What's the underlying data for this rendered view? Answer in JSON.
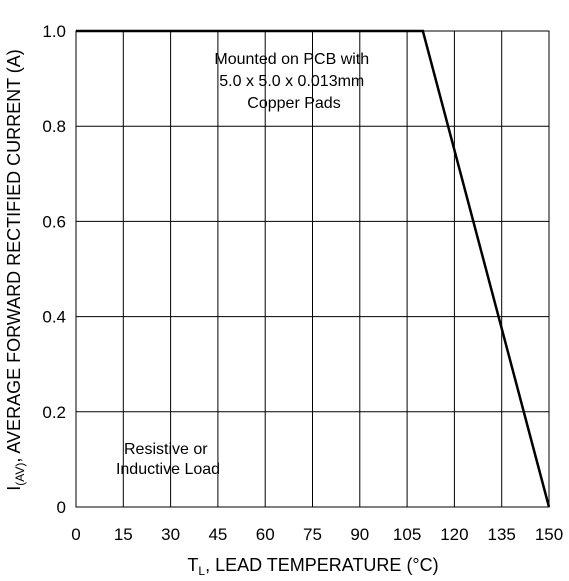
{
  "chart_data": {
    "type": "line",
    "xlabel": {
      "main": "T",
      "sub": "L",
      "rest": ", LEAD TEMPERATURE (°C)"
    },
    "ylabel": {
      "main": "I",
      "sub": "(AV)",
      "rest": ", AVERAGE FORWARD RECTIFIED CURRENT (A)"
    },
    "x_ticks": [
      "0",
      "15",
      "30",
      "45",
      "60",
      "75",
      "90",
      "105",
      "120",
      "135",
      "150"
    ],
    "y_ticks": [
      "0",
      "0.2",
      "0.4",
      "0.6",
      "0.8",
      "1.0"
    ],
    "xlim": [
      0,
      150
    ],
    "ylim": [
      0,
      1.0
    ],
    "grid": true,
    "series": [
      {
        "x": [
          0,
          110,
          150
        ],
        "y": [
          1.0,
          1.0,
          0
        ]
      }
    ],
    "annotations": {
      "mounting": [
        "Mounted on PCB with",
        "5.0 x 5.0 x 0.013mm",
        "Copper Pads"
      ],
      "load": [
        "Resistive or",
        "Inductive Load"
      ]
    }
  }
}
